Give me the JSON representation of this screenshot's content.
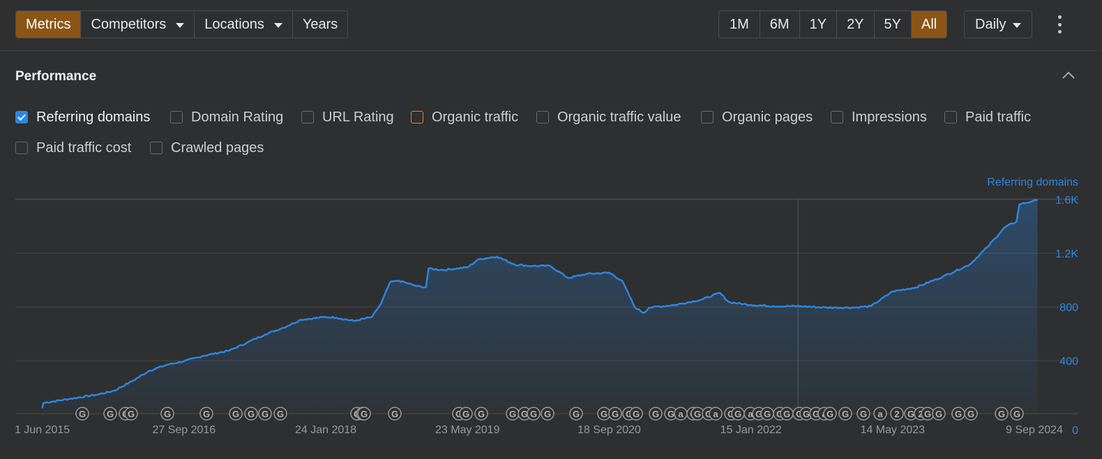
{
  "toolbar": {
    "left_buttons": [
      {
        "label": "Metrics",
        "active": true,
        "dropdown": false
      },
      {
        "label": "Competitors",
        "active": false,
        "dropdown": true
      },
      {
        "label": "Locations",
        "active": false,
        "dropdown": true
      },
      {
        "label": "Years",
        "active": false,
        "dropdown": false
      }
    ],
    "ranges": [
      {
        "label": "1M",
        "active": false
      },
      {
        "label": "6M",
        "active": false
      },
      {
        "label": "1Y",
        "active": false
      },
      {
        "label": "2Y",
        "active": false
      },
      {
        "label": "5Y",
        "active": false
      },
      {
        "label": "All",
        "active": true
      }
    ],
    "granularity": "Daily",
    "more_icon": "kebab-icon"
  },
  "section": {
    "title": "Performance",
    "collapse_icon": "chevron-up-icon"
  },
  "metrics": [
    {
      "label": "Referring domains",
      "checked": true,
      "color": "#2c86e0"
    },
    {
      "label": "Domain Rating",
      "checked": false
    },
    {
      "label": "URL Rating",
      "checked": false
    },
    {
      "label": "Organic traffic",
      "checked": false,
      "color": "#e58a22"
    },
    {
      "label": "Organic traffic value",
      "checked": false
    },
    {
      "label": "Organic pages",
      "checked": false
    },
    {
      "label": "Impressions",
      "checked": false
    },
    {
      "label": "Paid traffic",
      "checked": false
    },
    {
      "label": "Paid traffic cost",
      "checked": false
    },
    {
      "label": "Crawled pages",
      "checked": false
    }
  ],
  "chart_data": {
    "type": "area",
    "series": [
      {
        "name": "Referring domains",
        "color": "#2c86e0",
        "points": [
          [
            "2015-06-01",
            40
          ],
          [
            "2015-06-05",
            80
          ],
          [
            "2015-09-01",
            110
          ],
          [
            "2015-12-01",
            140
          ],
          [
            "2016-02-01",
            170
          ],
          [
            "2016-04-01",
            240
          ],
          [
            "2016-06-01",
            320
          ],
          [
            "2016-08-01",
            365
          ],
          [
            "2016-09-27",
            390
          ],
          [
            "2016-12-01",
            430
          ],
          [
            "2017-03-01",
            470
          ],
          [
            "2017-05-01",
            530
          ],
          [
            "2017-07-01",
            590
          ],
          [
            "2017-09-01",
            640
          ],
          [
            "2017-11-01",
            700
          ],
          [
            "2018-01-24",
            720
          ],
          [
            "2018-03-01",
            715
          ],
          [
            "2018-05-01",
            690
          ],
          [
            "2018-07-01",
            720
          ],
          [
            "2018-08-01",
            820
          ],
          [
            "2018-09-01",
            980
          ],
          [
            "2018-10-01",
            990
          ],
          [
            "2018-12-01",
            950
          ],
          [
            "2019-01-01",
            940
          ],
          [
            "2019-01-10",
            1080
          ],
          [
            "2019-03-01",
            1070
          ],
          [
            "2019-05-23",
            1090
          ],
          [
            "2019-07-01",
            1150
          ],
          [
            "2019-09-01",
            1170
          ],
          [
            "2019-11-01",
            1110
          ],
          [
            "2020-01-01",
            1100
          ],
          [
            "2020-03-01",
            1100
          ],
          [
            "2020-05-01",
            1010
          ],
          [
            "2020-07-01",
            1040
          ],
          [
            "2020-09-18",
            1050
          ],
          [
            "2020-11-01",
            990
          ],
          [
            "2020-12-15",
            790
          ],
          [
            "2021-01-15",
            750
          ],
          [
            "2021-02-01",
            790
          ],
          [
            "2021-05-01",
            810
          ],
          [
            "2021-08-01",
            850
          ],
          [
            "2021-10-01",
            900
          ],
          [
            "2021-11-01",
            830
          ],
          [
            "2022-01-15",
            810
          ],
          [
            "2022-04-01",
            800
          ],
          [
            "2022-07-01",
            800
          ],
          [
            "2022-10-01",
            790
          ],
          [
            "2023-01-01",
            790
          ],
          [
            "2023-03-01",
            800
          ],
          [
            "2023-05-14",
            910
          ],
          [
            "2023-08-01",
            940
          ],
          [
            "2023-11-01",
            1020
          ],
          [
            "2024-02-01",
            1110
          ],
          [
            "2024-04-01",
            1240
          ],
          [
            "2024-06-01",
            1390
          ],
          [
            "2024-07-10",
            1430
          ],
          [
            "2024-07-20",
            1560
          ],
          [
            "2024-09-01",
            1580
          ],
          [
            "2024-09-20",
            1590
          ]
        ]
      }
    ],
    "x_ticks": [
      "1 Jun 2015",
      "27 Sep 2016",
      "24 Jan 2018",
      "23 May 2019",
      "18 Sep 2020",
      "15 Jan 2022",
      "14 May 2023",
      "9 Sep 2024"
    ],
    "x_range": [
      "2015-03-01",
      "2025-02-06"
    ],
    "y_ticks": [
      "0",
      "400",
      "800",
      "1.2K",
      "1.6K"
    ],
    "ylim": [
      0,
      1600
    ],
    "axis_title": "Referring domains",
    "grid": true,
    "annotations": {
      "icon": "google-update-icon",
      "markers": [
        "G",
        "G",
        "G",
        "G",
        "G",
        "G",
        "G",
        "G",
        "G",
        "G",
        "G",
        "G",
        "G",
        "G",
        "G",
        "G",
        "G",
        "G",
        "G",
        "G",
        "G",
        "G",
        "G",
        "G",
        "G",
        "G",
        "G",
        "G",
        "a",
        "G",
        "G",
        "G",
        "a",
        "G",
        "G",
        "a",
        "G",
        "G",
        "G",
        "G",
        "G",
        "G",
        "G",
        "a",
        "G",
        "G",
        "G",
        "a",
        "2",
        "G",
        "2"
      ]
    }
  }
}
